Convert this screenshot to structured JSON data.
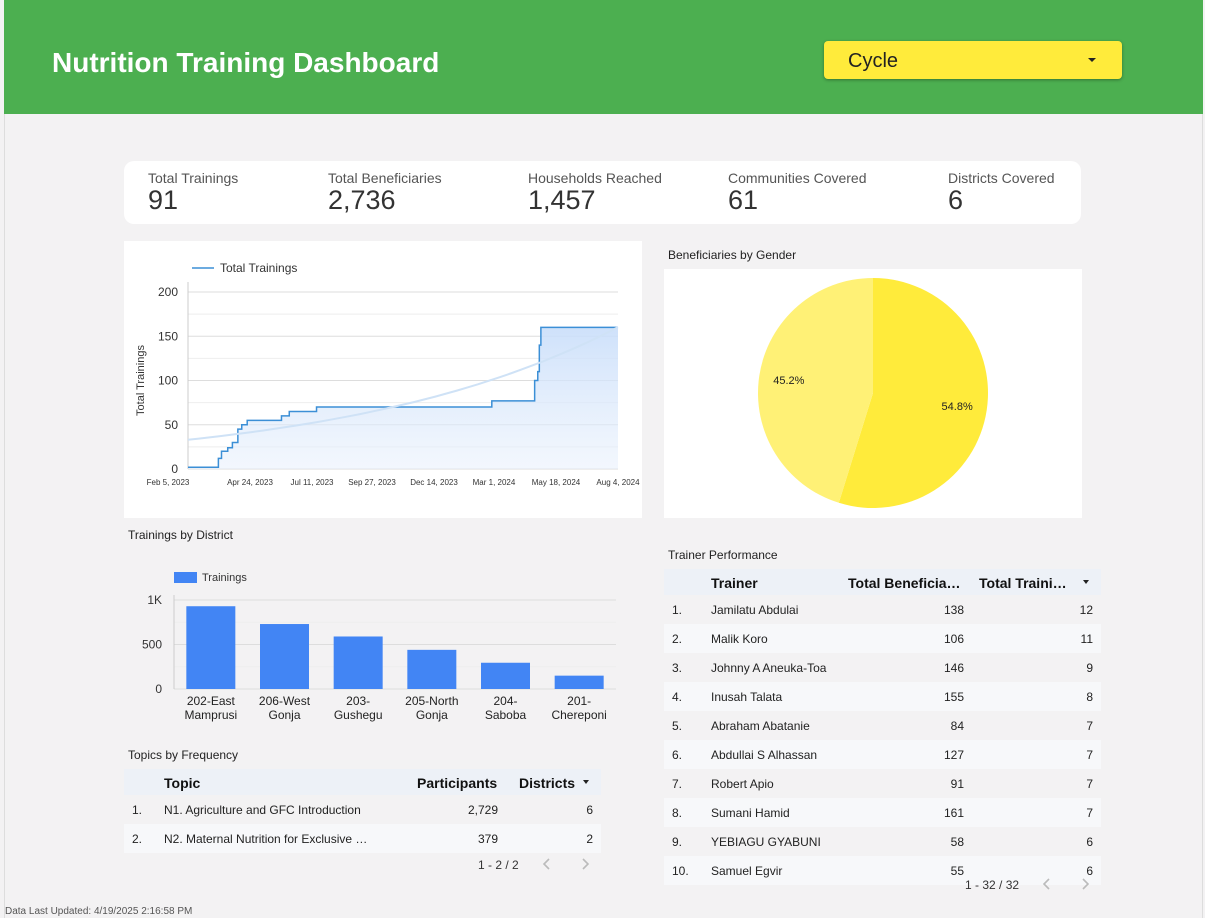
{
  "header": {
    "title": "Nutrition Training Dashboard",
    "filter_label": "Cycle"
  },
  "kpis": [
    {
      "label": "Total Trainings",
      "value": "91"
    },
    {
      "label": "Total Beneficiaries",
      "value": "2,736"
    },
    {
      "label": "Households Reached",
      "value": "1,457"
    },
    {
      "label": "Communities Covered",
      "value": "61"
    },
    {
      "label": "Districts Covered",
      "value": "6"
    }
  ],
  "chart_data": [
    {
      "type": "line",
      "legend": [
        "Total Trainings"
      ],
      "legend_position": "top-left",
      "ylabel": "Total Trainings",
      "ylim": [
        0,
        200
      ],
      "yticks": [
        "200",
        "150",
        "100",
        "50",
        "0"
      ],
      "xticks": [
        "Feb 5, 2023",
        "Apr 24, 2023",
        "Jul 11, 2023",
        "Sep 27, 2023",
        "Dec 14, 2023",
        "Mar 1, 2024",
        "May 18, 2024",
        "Aug 4, 2024"
      ],
      "series": [
        {
          "name": "Total Trainings",
          "x": [
            "2023-02-05",
            "2023-03-12",
            "2023-03-16",
            "2023-03-20",
            "2023-03-28",
            "2023-04-03",
            "2023-04-10",
            "2023-04-15",
            "2023-04-22",
            "2023-04-28",
            "2023-05-10",
            "2023-06-05",
            "2023-06-15",
            "2023-07-01",
            "2023-07-20",
            "2023-09-27",
            "2024-01-01",
            "2024-03-01",
            "2024-04-20",
            "2024-04-25",
            "2024-04-29",
            "2024-05-01",
            "2024-05-03",
            "2024-05-18",
            "2024-08-10"
          ],
          "y": [
            2,
            2,
            12,
            20,
            24,
            30,
            45,
            50,
            55,
            55,
            55,
            60,
            65,
            65,
            70,
            70,
            70,
            77,
            77,
            100,
            110,
            140,
            160,
            160,
            160
          ]
        }
      ],
      "trendline": true,
      "grid": true
    },
    {
      "type": "pie",
      "title": "Beneficiaries by Gender",
      "slices": [
        {
          "label": "54.8%",
          "value": 54.8,
          "color": "#ffeb3b"
        },
        {
          "label": "45.2%",
          "value": 45.2,
          "color": "#fff176"
        }
      ]
    },
    {
      "type": "bar",
      "title": "Trainings by District",
      "legend": [
        "Trainings"
      ],
      "legend_position": "top-left",
      "categories": [
        "202-East Mamprusi",
        "206-West Gonja",
        "203-Gushegu",
        "205-North Gonja",
        "204-Saboba",
        "201-Chereponi"
      ],
      "category_lines": [
        [
          "202-East",
          "Mamprusi"
        ],
        [
          "206-West",
          "Gonja"
        ],
        [
          "203-",
          "Gushegu"
        ],
        [
          "205-North",
          "Gonja"
        ],
        [
          "204-",
          "Saboba"
        ],
        [
          "201-",
          "Chereponi"
        ]
      ],
      "values": [
        930,
        730,
        590,
        440,
        295,
        150
      ],
      "ylim": [
        0,
        1000
      ],
      "yticks": [
        "1K",
        "500",
        "0"
      ],
      "color": "#4285f4",
      "grid": true
    }
  ],
  "topics": {
    "title": "Topics by Frequency",
    "columns": [
      "Topic",
      "Participants",
      "Districts"
    ],
    "rows": [
      {
        "idx": "1.",
        "topic": "N1. Agriculture and GFC Introduction",
        "participants": "2,729",
        "districts": "6"
      },
      {
        "idx": "2.",
        "topic": "N2. Maternal Nutrition for Exclusive …",
        "participants": "379",
        "districts": "2"
      }
    ],
    "pager": "1 - 2 / 2"
  },
  "trainers": {
    "title": "Trainer Performance",
    "columns": [
      "Trainer",
      "Total Beneficia…",
      "Total Traini…"
    ],
    "rows": [
      {
        "idx": "1.",
        "name": "Jamilatu Abdulai",
        "ben": "138",
        "tr": "12"
      },
      {
        "idx": "2.",
        "name": "Malik Koro",
        "ben": "106",
        "tr": "11"
      },
      {
        "idx": "3.",
        "name": "Johnny A Aneuka-Toa",
        "ben": "146",
        "tr": "9"
      },
      {
        "idx": "4.",
        "name": "Inusah Talata",
        "ben": "155",
        "tr": "8"
      },
      {
        "idx": "5.",
        "name": "Abraham Abatanie",
        "ben": "84",
        "tr": "7"
      },
      {
        "idx": "6.",
        "name": "Abdullai S Alhassan",
        "ben": "127",
        "tr": "7"
      },
      {
        "idx": "7.",
        "name": "Robert Apio",
        "ben": "91",
        "tr": "7"
      },
      {
        "idx": "8.",
        "name": "Sumani Hamid",
        "ben": "161",
        "tr": "7"
      },
      {
        "idx": "9.",
        "name": "YEBIAGU GYABUNI",
        "ben": "58",
        "tr": "6"
      },
      {
        "idx": "10.",
        "name": "Samuel Egvir",
        "ben": "55",
        "tr": "6"
      }
    ],
    "pager": "1 - 32 / 32"
  },
  "footer": "Data Last Updated: 4/19/2025 2:16:58 PM",
  "colors": {
    "header": "#4caf50",
    "filter": "#ffeb3b",
    "line": "#3b8fd6",
    "bar": "#4285f4"
  },
  "icons": {
    "filter_caret": "caret-down-icon",
    "sort": "sort-desc-icon",
    "prev": "chevron-left-icon",
    "next": "chevron-right-icon"
  }
}
